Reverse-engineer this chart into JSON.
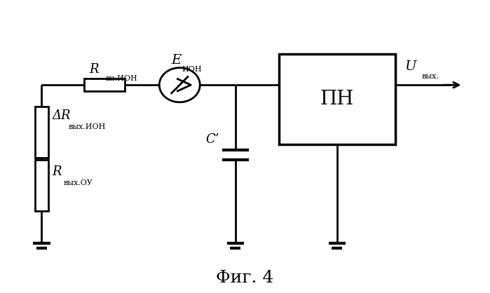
{
  "bg_color": "#ffffff",
  "line_color": "#000000",
  "line_width": 2.0,
  "fig_width": 6.99,
  "fig_height": 4.18,
  "title": "Фиг. 4",
  "title_fontsize": 18,
  "label_R_vn": "R",
  "label_R_vn_sub": "вн.ИОН",
  "label_E": "E",
  "label_E_sub": "ИОН",
  "label_dR": "ΔR",
  "label_dR_sub": "вых.ИОН",
  "label_R_out": "R",
  "label_R_out_sub": "вых.ОУ",
  "label_C": "C’",
  "label_PN": "ПН",
  "label_U": "U",
  "label_U_sub": "вых."
}
